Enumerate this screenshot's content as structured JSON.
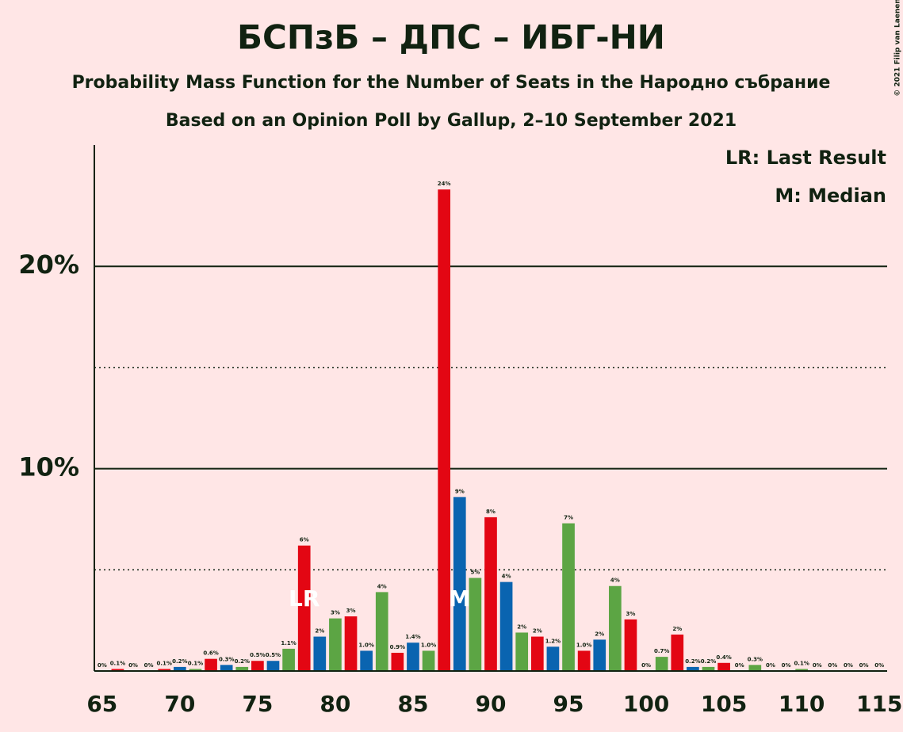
{
  "chart_data": {
    "type": "bar",
    "title": "БСПзБ – ДПС – ИБГ-НИ",
    "subtitle": "Probability Mass Function for the Number of Seats in the Народно събрание",
    "subtitle2": "Based on an Opinion Poll by Gallup, 2–10 September 2021",
    "copyright": "© 2021 Filip van Laenen",
    "legend": [
      "LR: Last Result",
      "M: Median"
    ],
    "x": [
      65,
      66,
      67,
      68,
      69,
      70,
      71,
      72,
      73,
      74,
      75,
      76,
      77,
      78,
      79,
      80,
      81,
      82,
      83,
      84,
      85,
      86,
      87,
      88,
      89,
      90,
      91,
      92,
      93,
      94,
      95,
      96,
      97,
      98,
      99,
      100,
      101,
      102,
      103,
      104,
      105,
      106,
      107,
      108,
      109,
      110,
      111,
      112,
      113,
      114,
      115
    ],
    "values": [
      0,
      0.1,
      0,
      0,
      0.1,
      0.2,
      0.1,
      0.6,
      0.3,
      0.2,
      0.5,
      0.5,
      1.1,
      6.2,
      1.7,
      2.6,
      2.7,
      1.0,
      3.9,
      0.9,
      1.4,
      1.0,
      23.8,
      8.6,
      4.6,
      7.6,
      4.4,
      1.9,
      1.7,
      1.2,
      7.3,
      1.0,
      1.55,
      4.2,
      2.55,
      0,
      0.7,
      1.8,
      0.2,
      0.2,
      0.4,
      0,
      0.3,
      0,
      0,
      0.1,
      0,
      0,
      0,
      0,
      0
    ],
    "value_labels": [
      "0%",
      "0.1%",
      "0%",
      "0%",
      "0.1%",
      "0.2%",
      "0.1%",
      "0.6%",
      "0.3%",
      "0.2%",
      "0.5%",
      "0.5%",
      "1.1%",
      "6%",
      "2%",
      "3%",
      "3%",
      "1.0%",
      "4%",
      "0.9%",
      "1.4%",
      "1.0%",
      "24%",
      "9%",
      "5%",
      "8%",
      "4%",
      "2%",
      "2%",
      "1.2%",
      "7%",
      "1.0%",
      "2%",
      "4%",
      "3%",
      "0%",
      "0.7%",
      "2%",
      "0.2%",
      "0.2%",
      "0.4%",
      "0%",
      "0.3%",
      "0%",
      "0%",
      "0.1%",
      "0%",
      "0%",
      "0%",
      "0%",
      "0%"
    ],
    "color_cycle": [
      "#5ca544",
      "#e30613",
      "#0a64b0"
    ],
    "annotations": [
      {
        "x": 78,
        "text": "LR"
      },
      {
        "x": 88,
        "text": "M"
      }
    ],
    "xlim": [
      64.5,
      115.5
    ],
    "xticks": [
      65,
      70,
      75,
      80,
      85,
      90,
      95,
      100,
      105,
      110,
      115
    ],
    "ylim": [
      0,
      26
    ],
    "yticks": [
      {
        "value": 10,
        "label": "10%"
      },
      {
        "value": 20,
        "label": "20%"
      }
    ],
    "minor_gridlines": [
      5,
      15
    ]
  }
}
